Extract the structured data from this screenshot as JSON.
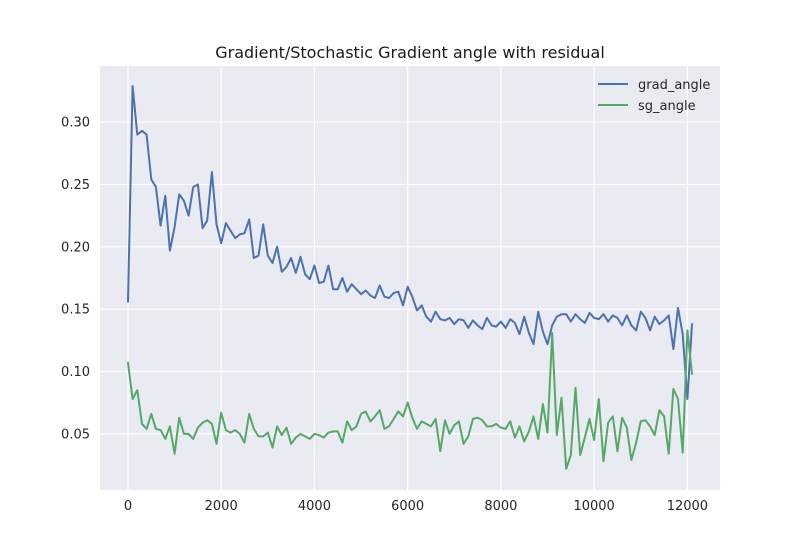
{
  "chart_data": {
    "type": "line",
    "title": "Gradient/Stochastic Gradient angle with residual",
    "xlabel": "",
    "ylabel": "",
    "xlim": [
      -600,
      12700
    ],
    "ylim": [
      0.005,
      0.345
    ],
    "xticks": [
      0,
      2000,
      4000,
      6000,
      8000,
      10000,
      12000
    ],
    "yticks": [
      0.05,
      0.1,
      0.15,
      0.2,
      0.25,
      0.3
    ],
    "grid": true,
    "legend_position": "top-right",
    "colors": {
      "background": "#EAEAF2",
      "grad_angle": "#4C72B0",
      "sg_angle": "#55A868"
    },
    "series": [
      {
        "name": "grad_angle",
        "color": "#4C72B0",
        "x": [
          0,
          100,
          200,
          300,
          400,
          500,
          600,
          700,
          800,
          900,
          1000,
          1100,
          1200,
          1300,
          1400,
          1500,
          1600,
          1700,
          1800,
          1900,
          2000,
          2100,
          2200,
          2300,
          2400,
          2500,
          2600,
          2700,
          2800,
          2900,
          3000,
          3100,
          3200,
          3300,
          3400,
          3500,
          3600,
          3700,
          3800,
          3900,
          4000,
          4100,
          4200,
          4300,
          4400,
          4500,
          4600,
          4700,
          4800,
          4900,
          5000,
          5100,
          5200,
          5300,
          5400,
          5500,
          5600,
          5700,
          5800,
          5900,
          6000,
          6100,
          6200,
          6300,
          6400,
          6500,
          6600,
          6700,
          6800,
          6900,
          7000,
          7100,
          7200,
          7300,
          7400,
          7500,
          7600,
          7700,
          7800,
          7900,
          8000,
          8100,
          8200,
          8300,
          8400,
          8500,
          8600,
          8700,
          8800,
          8900,
          9000,
          9100,
          9200,
          9300,
          9400,
          9500,
          9600,
          9700,
          9800,
          9900,
          10000,
          10100,
          10200,
          10300,
          10400,
          10500,
          10600,
          10700,
          10800,
          10900,
          11000,
          11100,
          11200,
          11300,
          11400,
          11500,
          11600,
          11700,
          11800,
          11900,
          12000,
          12100
        ],
        "values": [
          0.156,
          0.329,
          0.29,
          0.293,
          0.29,
          0.254,
          0.248,
          0.217,
          0.241,
          0.197,
          0.216,
          0.242,
          0.237,
          0.225,
          0.248,
          0.25,
          0.215,
          0.221,
          0.26,
          0.218,
          0.203,
          0.219,
          0.213,
          0.207,
          0.21,
          0.211,
          0.222,
          0.191,
          0.193,
          0.218,
          0.193,
          0.187,
          0.2,
          0.18,
          0.184,
          0.191,
          0.179,
          0.192,
          0.178,
          0.174,
          0.185,
          0.171,
          0.172,
          0.185,
          0.166,
          0.166,
          0.175,
          0.164,
          0.17,
          0.166,
          0.162,
          0.165,
          0.161,
          0.159,
          0.169,
          0.16,
          0.159,
          0.163,
          0.164,
          0.153,
          0.168,
          0.16,
          0.149,
          0.153,
          0.144,
          0.14,
          0.148,
          0.142,
          0.141,
          0.143,
          0.138,
          0.142,
          0.141,
          0.135,
          0.141,
          0.137,
          0.134,
          0.143,
          0.137,
          0.136,
          0.14,
          0.135,
          0.142,
          0.139,
          0.13,
          0.144,
          0.131,
          0.122,
          0.148,
          0.132,
          0.122,
          0.137,
          0.144,
          0.146,
          0.146,
          0.14,
          0.146,
          0.142,
          0.139,
          0.147,
          0.143,
          0.142,
          0.146,
          0.14,
          0.145,
          0.143,
          0.137,
          0.145,
          0.137,
          0.133,
          0.148,
          0.143,
          0.133,
          0.144,
          0.138,
          0.141,
          0.145,
          0.118,
          0.151,
          0.13,
          0.078,
          0.138
        ]
      },
      {
        "name": "sg_angle",
        "color": "#55A868",
        "x": [
          0,
          100,
          200,
          300,
          400,
          500,
          600,
          700,
          800,
          900,
          1000,
          1100,
          1200,
          1300,
          1400,
          1500,
          1600,
          1700,
          1800,
          1900,
          2000,
          2100,
          2200,
          2300,
          2400,
          2500,
          2600,
          2700,
          2800,
          2900,
          3000,
          3100,
          3200,
          3300,
          3400,
          3500,
          3600,
          3700,
          3800,
          3900,
          4000,
          4100,
          4200,
          4300,
          4400,
          4500,
          4600,
          4700,
          4800,
          4900,
          5000,
          5100,
          5200,
          5300,
          5400,
          5500,
          5600,
          5700,
          5800,
          5900,
          6000,
          6100,
          6200,
          6300,
          6400,
          6500,
          6600,
          6700,
          6800,
          6900,
          7000,
          7100,
          7200,
          7300,
          7400,
          7500,
          7600,
          7700,
          7800,
          7900,
          8000,
          8100,
          8200,
          8300,
          8400,
          8500,
          8600,
          8700,
          8800,
          8900,
          9000,
          9100,
          9200,
          9300,
          9400,
          9500,
          9600,
          9700,
          9800,
          9900,
          10000,
          10100,
          10200,
          10300,
          10400,
          10500,
          10600,
          10700,
          10800,
          10900,
          11000,
          11100,
          11200,
          11300,
          11400,
          11500,
          11600,
          11700,
          11800,
          11900,
          12000,
          12100
        ],
        "values": [
          0.107,
          0.078,
          0.085,
          0.058,
          0.054,
          0.066,
          0.054,
          0.053,
          0.046,
          0.056,
          0.034,
          0.063,
          0.05,
          0.05,
          0.046,
          0.055,
          0.059,
          0.061,
          0.058,
          0.042,
          0.067,
          0.053,
          0.051,
          0.053,
          0.05,
          0.043,
          0.066,
          0.054,
          0.048,
          0.048,
          0.051,
          0.039,
          0.056,
          0.049,
          0.055,
          0.042,
          0.047,
          0.05,
          0.048,
          0.046,
          0.05,
          0.049,
          0.047,
          0.051,
          0.052,
          0.052,
          0.043,
          0.06,
          0.053,
          0.056,
          0.066,
          0.068,
          0.06,
          0.064,
          0.069,
          0.054,
          0.056,
          0.062,
          0.068,
          0.064,
          0.075,
          0.063,
          0.054,
          0.06,
          0.058,
          0.056,
          0.062,
          0.036,
          0.061,
          0.05,
          0.057,
          0.06,
          0.042,
          0.048,
          0.062,
          0.063,
          0.061,
          0.056,
          0.056,
          0.058,
          0.055,
          0.054,
          0.06,
          0.047,
          0.056,
          0.044,
          0.052,
          0.064,
          0.046,
          0.074,
          0.051,
          0.131,
          0.049,
          0.079,
          0.022,
          0.033,
          0.087,
          0.033,
          0.047,
          0.062,
          0.045,
          0.078,
          0.028,
          0.059,
          0.064,
          0.036,
          0.063,
          0.055,
          0.029,
          0.043,
          0.06,
          0.061,
          0.056,
          0.049,
          0.069,
          0.064,
          0.034,
          0.086,
          0.078,
          0.035,
          0.133,
          0.098
        ]
      }
    ]
  }
}
